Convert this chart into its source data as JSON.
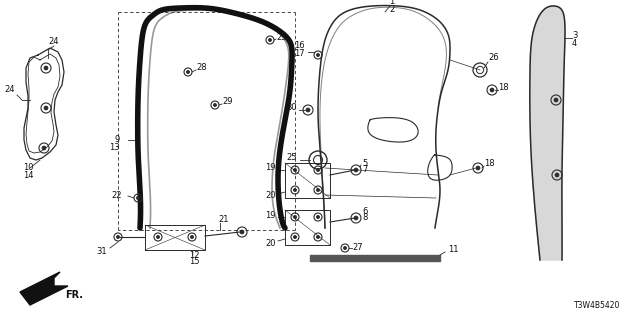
{
  "part_number": "T3W4B5420",
  "bg_color": "#ffffff",
  "line_color": "#2a2a2a",
  "text_color": "#111111",
  "figsize": [
    6.4,
    3.2
  ],
  "dpi": 100,
  "seal_color": "#111111",
  "seal_lw": 4.0,
  "door_lw": 1.1,
  "bracket_lw": 0.9,
  "label_fontsize": 6.0,
  "pn_fontsize": 5.5
}
